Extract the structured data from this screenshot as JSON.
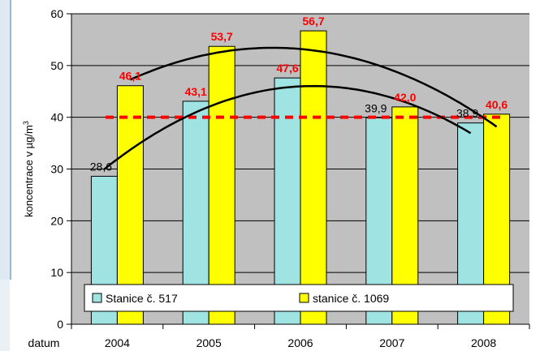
{
  "chart_data": {
    "type": "bar",
    "categories": [
      "2004",
      "2005",
      "2006",
      "2007",
      "2008"
    ],
    "series": [
      {
        "name": "Stanice č. 517",
        "values": [
          28.6,
          43.1,
          47.6,
          39.9,
          38.9
        ],
        "labels": [
          "28,6",
          "43,1",
          "47,6",
          "39,9",
          "38,9"
        ],
        "color": "#9fe3e3"
      },
      {
        "name": "stanice č. 1069",
        "values": [
          46.1,
          53.7,
          56.7,
          42.0,
          40.6
        ],
        "labels": [
          "46,1",
          "53,7",
          "56,7",
          "42,0",
          "40,6"
        ],
        "color": "#ffff00"
      }
    ],
    "ylabel": "koncentrace v µg/m",
    "ylabel_superscript": "3",
    "xlabel": "datum",
    "ylim": [
      0,
      60
    ],
    "yticks": [
      0,
      10,
      20,
      30,
      40,
      50,
      60
    ],
    "reference_line": {
      "value": 40,
      "color": "#ff0000",
      "style": "dashed"
    },
    "trendlines": "polynomial (one per series)",
    "grid": true,
    "plot_background": "#c0c0c0",
    "legend_position": "bottom-inside"
  }
}
